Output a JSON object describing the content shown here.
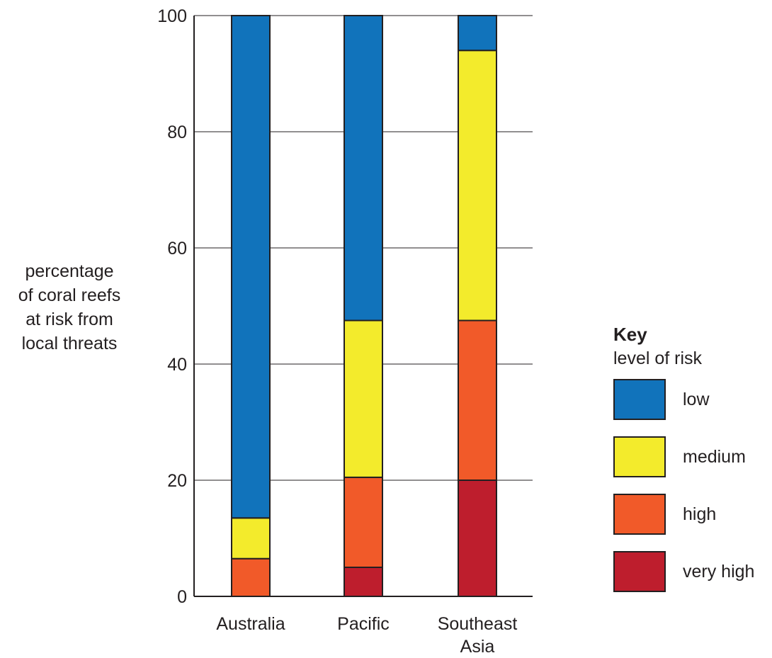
{
  "chart_data": {
    "type": "bar",
    "stacked": true,
    "categories": [
      "Australia",
      "Pacific",
      "Southeast Asia"
    ],
    "category_label_lines": [
      [
        "Australia"
      ],
      [
        "Pacific"
      ],
      [
        "Southeast",
        "Asia"
      ]
    ],
    "series": [
      {
        "name": "very high",
        "color": "#be1e2d",
        "values": [
          0,
          5,
          20
        ]
      },
      {
        "name": "high",
        "color": "#f15a29",
        "values": [
          6.5,
          15.5,
          27.5
        ]
      },
      {
        "name": "medium",
        "color": "#f3eb2c",
        "values": [
          7,
          27,
          46.5
        ]
      },
      {
        "name": "low",
        "color": "#1173bb",
        "values": [
          86.5,
          52.5,
          6
        ]
      }
    ],
    "ylabel_lines": [
      "percentage",
      "of coral reefs",
      "at risk from",
      "local threats"
    ],
    "xlabel": "",
    "ylim": [
      0,
      100
    ],
    "yticks": [
      0,
      20,
      40,
      60,
      80,
      100
    ],
    "grid": true,
    "legend": {
      "title": "Key",
      "subtitle": "level of risk",
      "placement": "right",
      "items": [
        {
          "label": "low",
          "color": "#1173bb"
        },
        {
          "label": "medium",
          "color": "#f3eb2c"
        },
        {
          "label": "high",
          "color": "#f15a29"
        },
        {
          "label": "very high",
          "color": "#be1e2d"
        }
      ]
    }
  }
}
